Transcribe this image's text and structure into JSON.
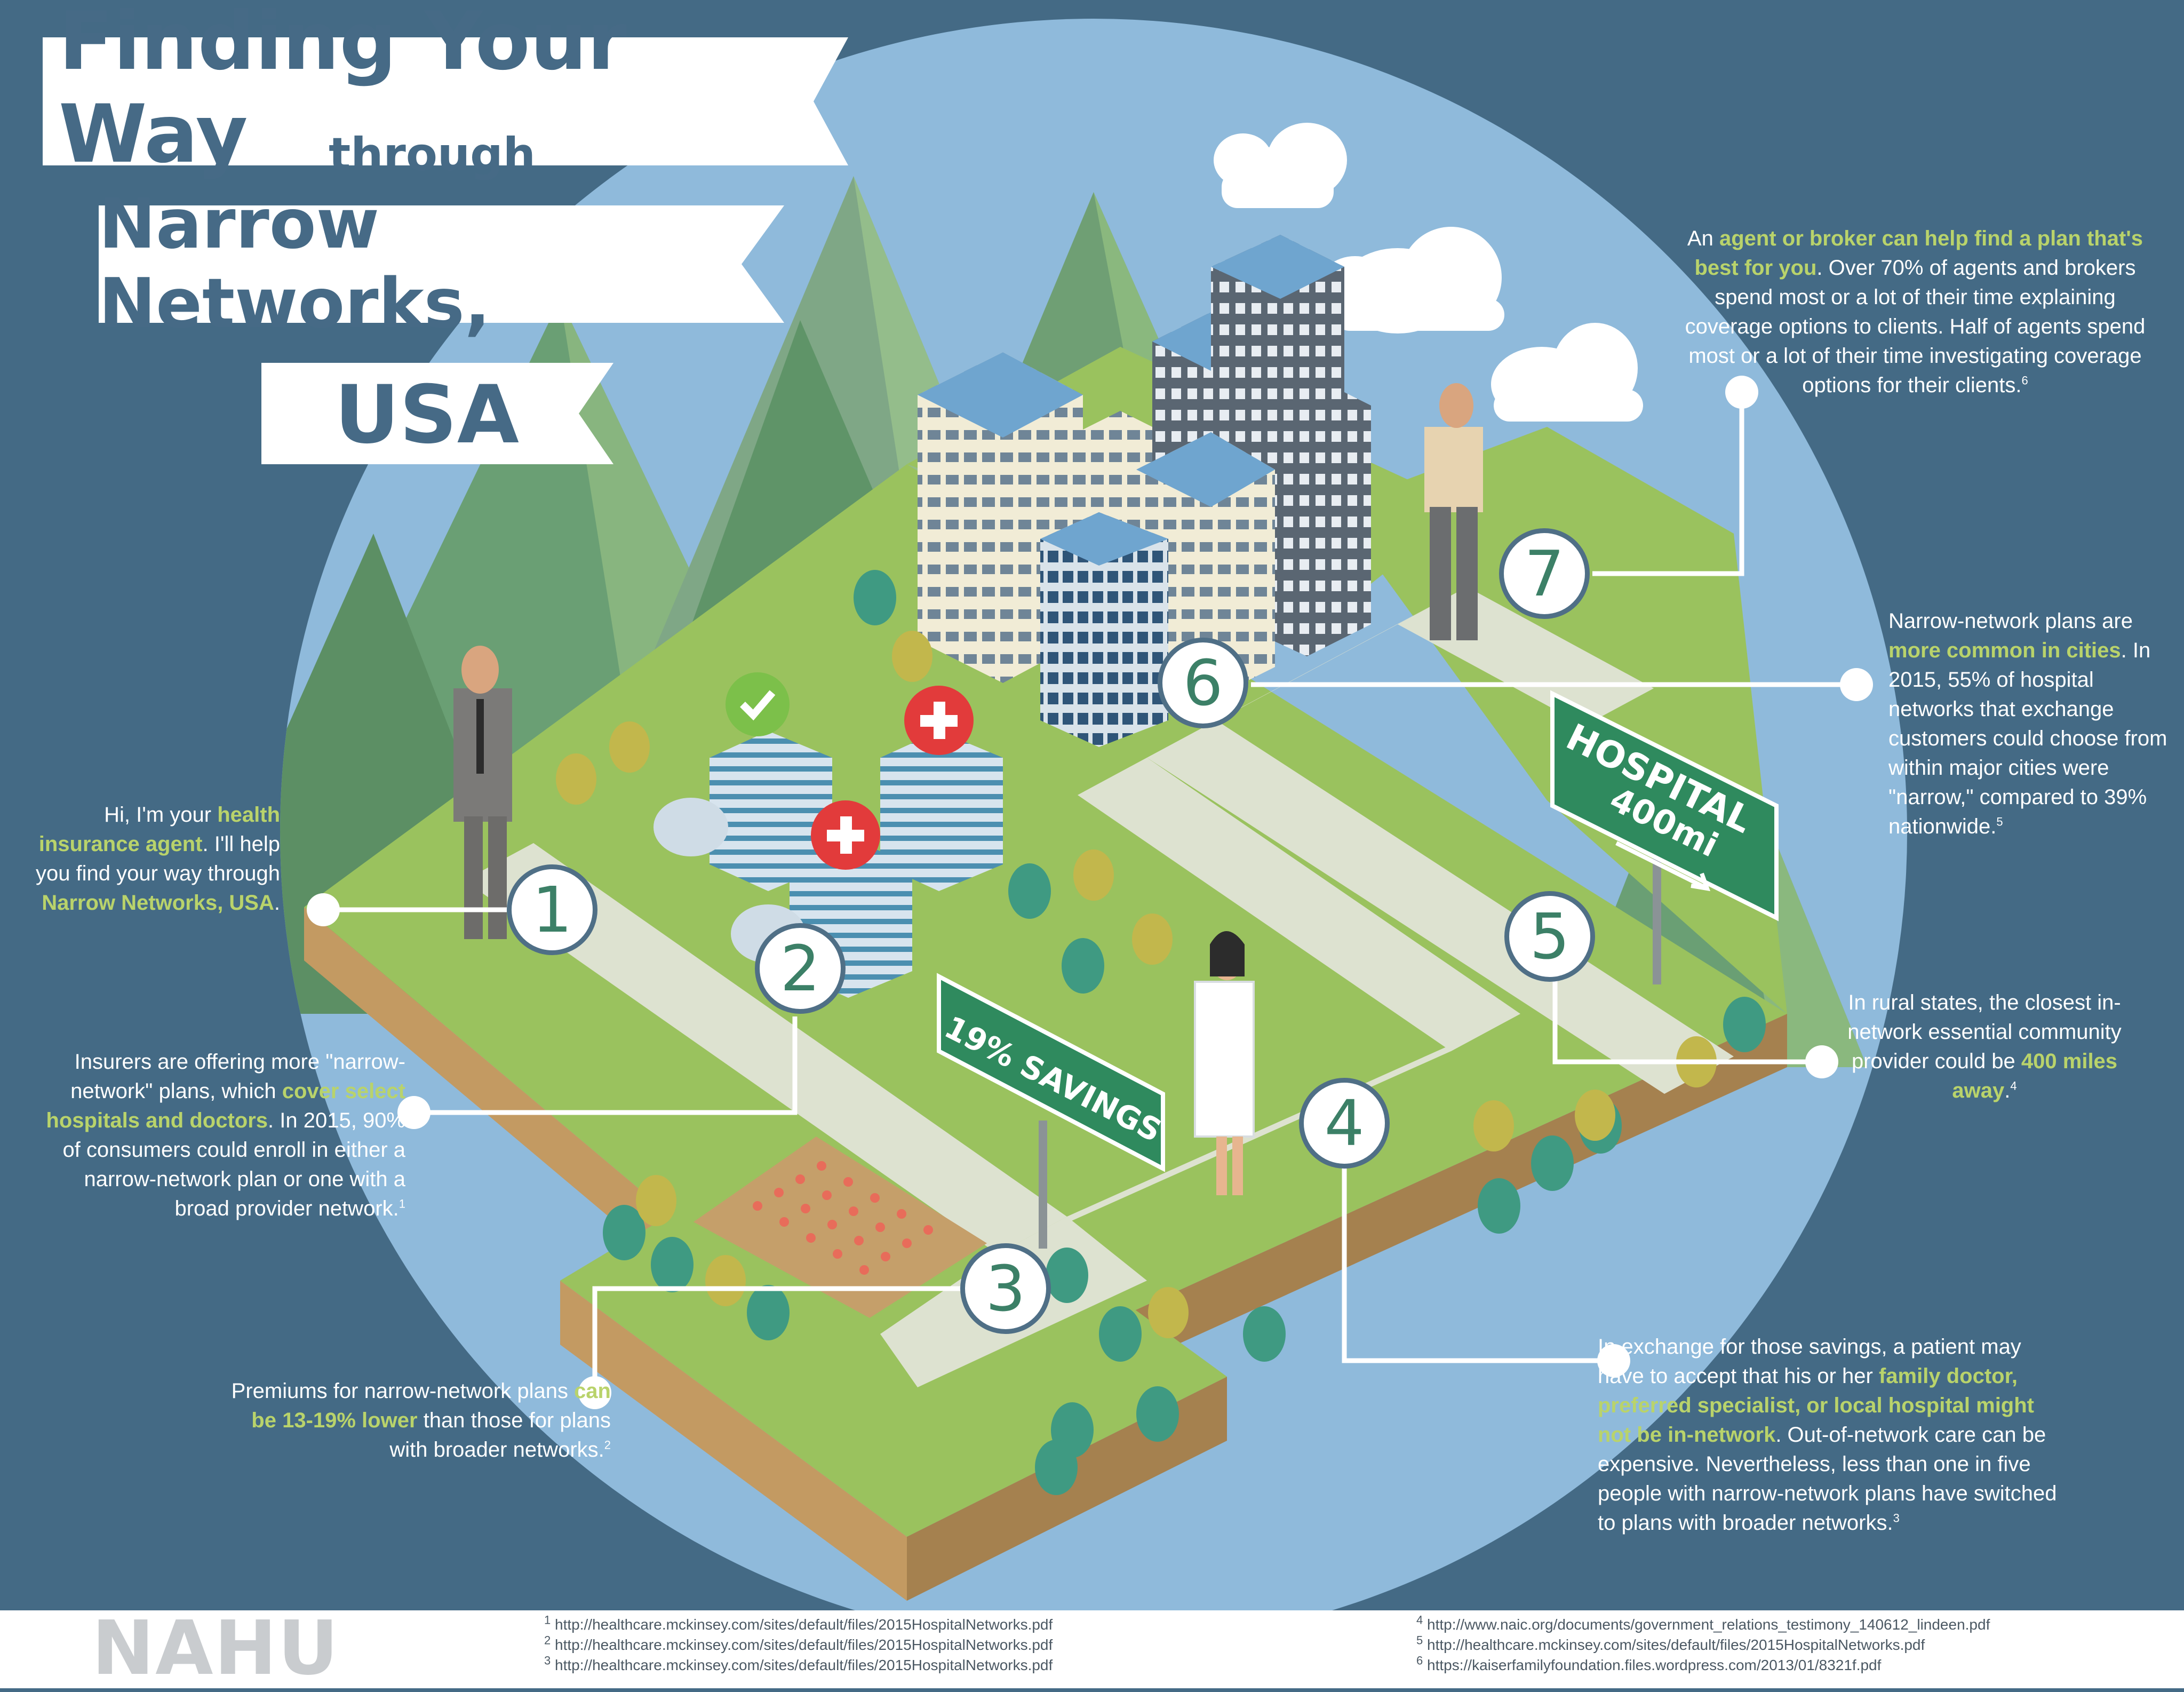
{
  "title": {
    "line1": "Finding Your Way",
    "line2": "through",
    "line3": "Narrow Networks,",
    "line4": "USA"
  },
  "signs": {
    "hospital_line1": "HOSPITAL",
    "hospital_line2": "400mi",
    "savings": "19% SAVINGS"
  },
  "steps": [
    "1",
    "2",
    "3",
    "4",
    "5",
    "6",
    "7"
  ],
  "text": {
    "s1": {
      "a": "Hi, I'm your ",
      "b": "health insurance agent",
      "c": ". I'll help you find your way through ",
      "d": "Narrow Networks, USA",
      "e": "."
    },
    "s2": {
      "a": "Insurers are offering more \"narrow-network\" plans, which ",
      "b": "cover select hospitals and doctors",
      "c": ". In 2015, 90% of consumers could enroll in either a narrow-network plan or one with a broad provider network.",
      "sup": "1"
    },
    "s3": {
      "a": "Premiums for narrow-network plans ",
      "b": "can be 13-19% lower",
      "c": " than those for plans with broader networks.",
      "sup": "2"
    },
    "s4": {
      "a": "In exchange for those savings, a patient may have to accept that his or her ",
      "b": "family doctor, preferred specialist, or local hospital might not be in-network",
      "c": ". Out-of-network care can be expensive. Nevertheless, less than one in five people with narrow-network plans have switched to plans with broader networks.",
      "sup": "3"
    },
    "s5": {
      "a": "In rural states, the closest in-network essential community provider could be ",
      "b": "400 miles away",
      "c": ".",
      "sup": "4"
    },
    "s6": {
      "a": "Narrow-network plans are ",
      "b": "more common in cities",
      "c": ". In 2015, 55% of hospital networks that exchange customers could choose from within major cities were \"narrow,\" compared to 39% nationwide.",
      "sup": "5"
    },
    "s7": {
      "a": "An ",
      "b": "agent or broker can help find a plan that's best for you",
      "c": ". Over 70% of agents and brokers spend most or a lot of their time explaining coverage options to clients. Half of agents spend most or a lot of their time investigating coverage options for their clients.",
      "sup": "6"
    }
  },
  "footer": {
    "logo": "NAHU",
    "refs_left": [
      {
        "n": "1",
        "url": "http://healthcare.mckinsey.com/sites/default/files/2015HospitalNetworks.pdf"
      },
      {
        "n": "2",
        "url": "http://healthcare.mckinsey.com/sites/default/files/2015HospitalNetworks.pdf"
      },
      {
        "n": "3",
        "url": "http://healthcare.mckinsey.com/sites/default/files/2015HospitalNetworks.pdf"
      }
    ],
    "refs_right": [
      {
        "n": "4",
        "url": "http://www.naic.org/documents/government_relations_testimony_140612_lindeen.pdf"
      },
      {
        "n": "5",
        "url": "http://healthcare.mckinsey.com/sites/default/files/2015HospitalNetworks.pdf"
      },
      {
        "n": "6",
        "url": "https://kaiserfamilyfoundation.files.wordpress.com/2013/01/8321f.pdf"
      }
    ]
  },
  "colors": {
    "background": "#446a85",
    "sky": "#8fbadb",
    "grass": "#9ac25e",
    "road": "#dde2d0",
    "highlight": "#b9d36b",
    "sign_green": "#2f8a5e",
    "title_text": "#466a86"
  }
}
